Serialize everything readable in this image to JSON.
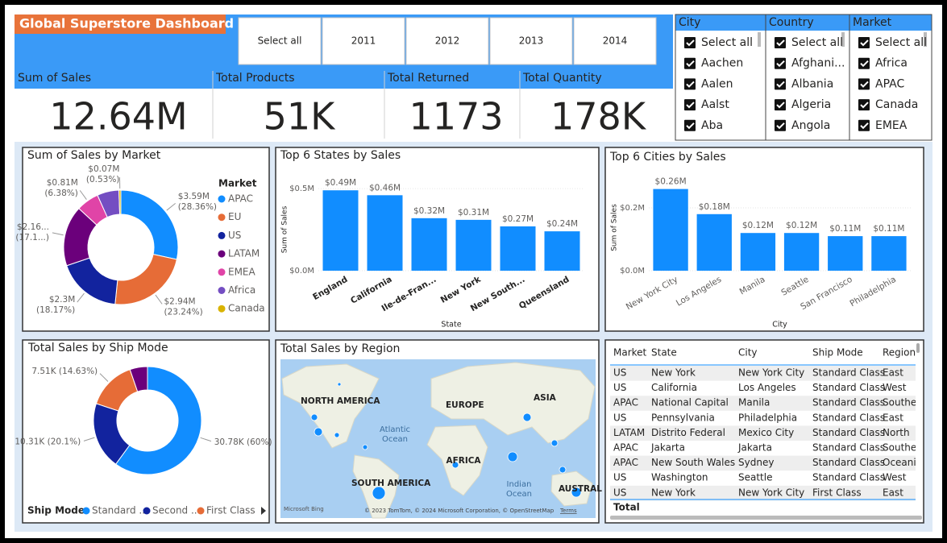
{
  "header": {
    "title": "Global Superstore Dashboard"
  },
  "year_slicer": [
    "Select all",
    "2011",
    "2012",
    "2013",
    "2014"
  ],
  "kpis": [
    {
      "label": "Sum of Sales",
      "value": "12.64M"
    },
    {
      "label": "Total Products",
      "value": "51K"
    },
    {
      "label": "Total Returned",
      "value": "1173"
    },
    {
      "label": "Total Quantity",
      "value": "178K"
    }
  ],
  "slicers": [
    {
      "title": "City",
      "items": [
        "Select all",
        "Aachen",
        "Aalen",
        "Aalst",
        "Aba"
      ]
    },
    {
      "title": "Country",
      "items": [
        "Select all",
        "Afghani...",
        "Albania",
        "Algeria",
        "Angola"
      ]
    },
    {
      "title": "Market",
      "items": [
        "Select all",
        "Africa",
        "APAC",
        "Canada",
        "EMEA"
      ]
    }
  ],
  "chart_data": [
    {
      "type": "pie",
      "title": "Sum of Sales by Market",
      "legend_title": "Market",
      "categories": [
        "APAC",
        "EU",
        "US",
        "LATAM",
        "EMEA",
        "Africa",
        "Canada"
      ],
      "values": [
        3.59,
        2.94,
        2.3,
        2.16,
        0.81,
        0.78,
        0.07
      ],
      "value_labels": [
        "$3.59M",
        "$2.94M",
        "$2.3M",
        "$2.16...",
        "$0.81M",
        null,
        "$0.07M"
      ],
      "percent_labels": [
        "(28.36%)",
        "(23.24%)",
        "(18.17%)",
        "(17.1...)",
        "(6.38%)",
        null,
        "(0.53%)"
      ],
      "colors": [
        "#118dff",
        "#e66c37",
        "#12239e",
        "#6b007b",
        "#e044a7",
        "#744ec2",
        "#d9b300"
      ]
    },
    {
      "type": "bar",
      "title": "Top 6 States by Sales",
      "x_label": "State",
      "y_label": "Sum of Sales",
      "categories": [
        "England",
        "California",
        "Ile-de-Fran...",
        "New York",
        "New South...",
        "Queensland"
      ],
      "values": [
        0.49,
        0.46,
        0.32,
        0.31,
        0.27,
        0.24
      ],
      "value_labels": [
        "$0.49M",
        "$0.46M",
        "$0.32M",
        "$0.31M",
        "$0.27M",
        "$0.24M"
      ],
      "color": "#118dff",
      "ylim": [
        0,
        0.55
      ],
      "yticks": [
        {
          "value": 0,
          "label": "$0.0M"
        },
        {
          "value": 0.5,
          "label": "$0.5M"
        }
      ]
    },
    {
      "type": "bar",
      "title": "Top 6 Cities by Sales",
      "x_label": "City",
      "y_label": "Sum of Sales",
      "categories": [
        "New York City",
        "Los Angeles",
        "Manila",
        "Seattle",
        "San Francisco",
        "Philadelphia"
      ],
      "values": [
        0.26,
        0.18,
        0.12,
        0.12,
        0.11,
        0.11
      ],
      "value_labels": [
        "$0.26M",
        "$0.18M",
        "$0.12M",
        "$0.12M",
        "$0.11M",
        "$0.11M"
      ],
      "color": "#118dff",
      "ylim": [
        0,
        0.3
      ],
      "yticks": [
        {
          "value": 0,
          "label": "$0.0M"
        },
        {
          "value": 0.2,
          "label": "$0.2M"
        }
      ]
    },
    {
      "type": "pie",
      "title": "Total Sales by Ship Mode",
      "legend_title": "Ship Mode",
      "categories": [
        "Standard ...",
        "Second ...",
        "First Class",
        null
      ],
      "values": [
        30.78,
        10.31,
        7.51,
        2.7
      ],
      "value_labels": [
        "30.78K (60%)",
        "10.31K (20.1%)",
        "7.51K (14.63%)",
        null
      ],
      "colors": [
        "#118dff",
        "#12239e",
        "#e66c37",
        "#6b007b"
      ]
    }
  ],
  "map": {
    "title": "Total Sales by Region",
    "labels": [
      "NORTH AMERICA",
      "EUROPE",
      "ASIA",
      "Atlantic",
      "Ocean",
      "AFRICA",
      "SOUTH AMERICA",
      "Indian",
      "Ocean",
      "AUSTRAL"
    ],
    "attribution": "Microsoft Bing",
    "copyright": "© 2023 TomTom, © 2024 Microsoft Corporation, © OpenStreetMap",
    "terms": "Terms"
  },
  "table": {
    "columns": [
      "Market",
      "State",
      "City",
      "Ship Mode",
      "Region"
    ],
    "rows": [
      [
        "US",
        "New York",
        "New York City",
        "Standard Class",
        "East"
      ],
      [
        "US",
        "California",
        "Los Angeles",
        "Standard Class",
        "West"
      ],
      [
        "APAC",
        "National Capital",
        "Manila",
        "Standard Class",
        "Southea"
      ],
      [
        "US",
        "Pennsylvania",
        "Philadelphia",
        "Standard Class",
        "East"
      ],
      [
        "LATAM",
        "Distrito Federal",
        "Mexico City",
        "Standard Class",
        "North"
      ],
      [
        "APAC",
        "Jakarta",
        "Jakarta",
        "Standard Class",
        "Southea"
      ],
      [
        "APAC",
        "New South Wales",
        "Sydney",
        "Standard Class",
        "Oceania"
      ],
      [
        "US",
        "Washington",
        "Seattle",
        "Standard Class",
        "West"
      ],
      [
        "US",
        "New York",
        "New York City",
        "First Class",
        "East"
      ]
    ],
    "total": "Total"
  }
}
